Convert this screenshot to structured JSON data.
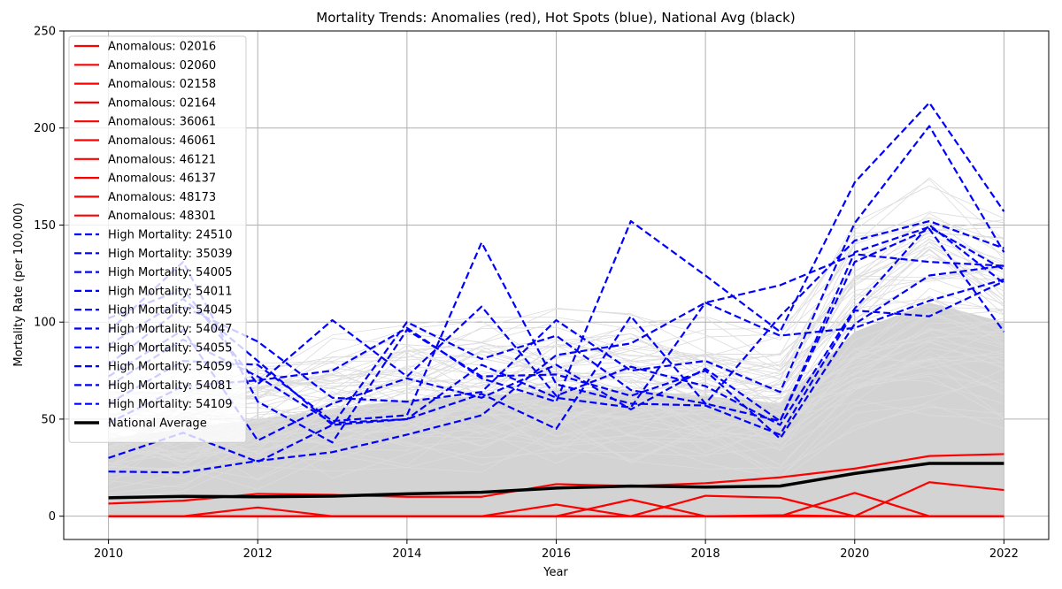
{
  "chart_data": {
    "type": "line",
    "title": "Mortality Trends: Anomalies (red), Hot Spots (blue), National Avg (black)",
    "xlabel": "Year",
    "ylabel": "Mortality Rate (per 100,000)",
    "x": [
      2010,
      2011,
      2012,
      2013,
      2014,
      2015,
      2016,
      2017,
      2018,
      2019,
      2020,
      2021,
      2022
    ],
    "xlim": [
      2009.4,
      2022.6
    ],
    "ylim": [
      -12,
      250
    ],
    "xticks": [
      2010,
      2012,
      2014,
      2016,
      2018,
      2020,
      2022
    ],
    "yticks": [
      0,
      50,
      100,
      150,
      200,
      250
    ],
    "grid": true,
    "legend_position": "upper-left",
    "colors": {
      "anomalous": "#ff0000",
      "high": "#0000ff",
      "national": "#000000",
      "background": "#d3d3d3"
    },
    "background_band": {
      "lower": [
        0,
        0,
        0,
        0,
        0,
        0,
        0,
        0,
        0,
        0,
        0,
        0,
        0
      ],
      "upper": [
        40,
        45,
        50,
        55,
        60,
        62,
        65,
        65,
        62,
        58,
        95,
        110,
        100
      ]
    },
    "series": [
      {
        "name": "Anomalous: 02016",
        "group": "anomalous",
        "values": [
          0,
          0,
          0,
          0,
          0,
          0,
          0,
          0,
          0,
          0,
          0,
          0,
          0
        ]
      },
      {
        "name": "Anomalous: 02060",
        "group": "anomalous",
        "values": [
          0,
          0,
          0,
          0,
          0,
          0,
          0,
          0,
          0,
          0,
          0,
          0,
          0
        ]
      },
      {
        "name": "Anomalous: 02158",
        "group": "anomalous",
        "values": [
          0,
          0,
          4.5,
          0,
          0,
          0,
          6,
          0,
          0,
          0,
          12,
          0,
          0
        ]
      },
      {
        "name": "Anomalous: 02164",
        "group": "anomalous",
        "values": [
          0,
          0,
          0,
          0,
          0,
          0,
          0,
          8.5,
          0,
          0,
          0,
          0,
          0
        ]
      },
      {
        "name": "Anomalous: 36061",
        "group": "anomalous",
        "values": [
          6.5,
          8,
          11.5,
          11,
          10,
          10,
          16.5,
          15.5,
          17,
          20,
          24.5,
          31,
          32
        ]
      },
      {
        "name": "Anomalous: 46061",
        "group": "anomalous",
        "values": [
          0,
          0,
          0,
          0,
          0,
          0,
          0,
          0,
          10.5,
          9.5,
          0,
          17.5,
          13.5
        ]
      },
      {
        "name": "Anomalous: 46121",
        "group": "anomalous",
        "values": [
          0,
          0,
          0,
          0,
          0,
          0,
          0,
          0,
          0,
          0,
          0,
          0,
          0
        ]
      },
      {
        "name": "Anomalous: 46137",
        "group": "anomalous",
        "values": [
          0,
          0,
          0,
          0,
          0,
          0,
          0,
          0,
          0,
          0.5,
          0,
          0,
          0
        ]
      },
      {
        "name": "Anomalous: 48173",
        "group": "anomalous",
        "values": [
          0,
          0,
          0,
          0,
          0,
          0,
          0,
          0,
          0,
          0,
          0,
          0,
          0
        ]
      },
      {
        "name": "Anomalous: 48301",
        "group": "anomalous",
        "values": [
          0,
          0,
          0,
          0,
          0,
          0,
          0,
          0,
          0,
          0,
          0,
          0,
          0
        ]
      },
      {
        "name": "High Mortality: 24510",
        "group": "high",
        "values": [
          23,
          22.5,
          28.5,
          33,
          42,
          52,
          83,
          89,
          110,
          119,
          135,
          131,
          129
        ]
      },
      {
        "name": "High Mortality: 35039",
        "group": "high",
        "values": [
          30,
          43,
          28,
          47,
          50,
          63,
          45,
          103,
          58,
          103,
          142,
          152,
          138
        ]
      },
      {
        "name": "High Mortality: 54005",
        "group": "high",
        "values": [
          48,
          67,
          70,
          75,
          97,
          71,
          59,
          152,
          124,
          95,
          172,
          213,
          157
        ]
      },
      {
        "name": "High Mortality: 54011",
        "group": "high",
        "values": [
          78,
          108,
          90,
          61,
          59,
          64,
          101,
          75,
          80,
          64,
          151,
          201,
          136
        ]
      },
      {
        "name": "High Mortality: 54045",
        "group": "high",
        "values": [
          58,
          80,
          78,
          49,
          52,
          141,
          68,
          58,
          57,
          42,
          106,
          103,
          121
        ]
      },
      {
        "name": "High Mortality: 54047",
        "group": "high",
        "values": [
          102,
          117,
          68,
          101,
          72,
          108,
          62,
          77,
          67,
          47,
          107,
          150,
          120
        ]
      },
      {
        "name": "High Mortality: 54055",
        "group": "high",
        "values": [
          88,
          112,
          80,
          47,
          100,
          81,
          93,
          65,
          58,
          49,
          136,
          149,
          127
        ]
      },
      {
        "name": "High Mortality: 54059",
        "group": "high",
        "values": [
          95,
          131,
          59,
          38,
          96,
          72,
          73,
          62,
          75,
          40,
          99,
          124,
          129
        ]
      },
      {
        "name": "High Mortality: 54081",
        "group": "high",
        "values": [
          67,
          91,
          72,
          48,
          50,
          78,
          61,
          56,
          110,
          93,
          97,
          111,
          122
        ]
      },
      {
        "name": "High Mortality: 54109",
        "group": "high",
        "values": [
          72,
          96,
          39,
          58,
          71,
          61,
          78,
          55,
          76,
          49,
          131,
          148,
          95
        ]
      },
      {
        "name": "National Average",
        "group": "national",
        "values": [
          9.5,
          10.2,
          10,
          10.3,
          11.5,
          12.3,
          14.5,
          15.5,
          15,
          15.5,
          22,
          27.2,
          27.2
        ]
      }
    ]
  }
}
